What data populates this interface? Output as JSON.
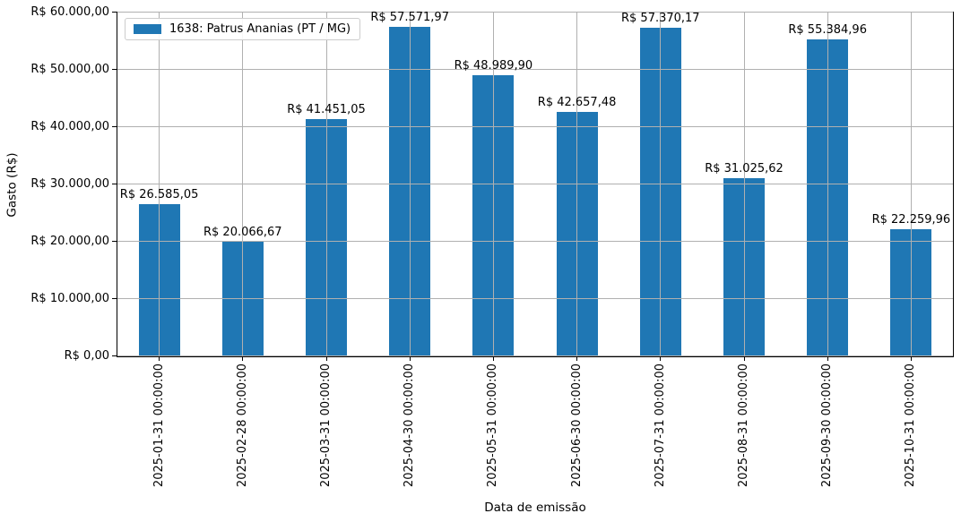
{
  "chart_data": {
    "type": "bar",
    "title": "",
    "xlabel": "Data de emissão",
    "ylabel": "Gasto (R$)",
    "legend": {
      "label": "1638: Patrus Ananias (PT / MG)",
      "position": "upper-left"
    },
    "categories": [
      "2025-01-31 00:00:00",
      "2025-02-28 00:00:00",
      "2025-03-31 00:00:00",
      "2025-04-30 00:00:00",
      "2025-05-31 00:00:00",
      "2025-06-30 00:00:00",
      "2025-07-31 00:00:00",
      "2025-08-31 00:00:00",
      "2025-09-30 00:00:00",
      "2025-10-31 00:00:00"
    ],
    "values": [
      26585.05,
      20066.67,
      41451.05,
      57571.97,
      48989.9,
      42657.48,
      57370.17,
      31025.62,
      55384.96,
      22259.96
    ],
    "bar_value_labels": [
      "R$ 26.585,05",
      "R$ 20.066,67",
      "R$ 41.451,05",
      "R$ 57.571,97",
      "R$ 48.989,90",
      "R$ 42.657,48",
      "R$ 57.370,17",
      "R$ 31.025,62",
      "R$ 55.384,96",
      "R$ 22.259,96"
    ],
    "y_ticks": {
      "values": [
        0,
        10000,
        20000,
        30000,
        40000,
        50000,
        60000
      ],
      "labels": [
        "R$ 0,00",
        "R$ 10.000,00",
        "R$ 20.000,00",
        "R$ 30.000,00",
        "R$ 40.000,00",
        "R$ 50.000,00",
        "R$ 60.000,00"
      ]
    },
    "ylim": [
      0,
      60000
    ],
    "grid": true,
    "grid_over_bars": true,
    "colors": {
      "bar": "#1f77b4",
      "grid": "#b0b0b0",
      "spine": "#000000",
      "text": "#000000",
      "background": "#ffffff",
      "legend_border": "#cccccc"
    }
  }
}
